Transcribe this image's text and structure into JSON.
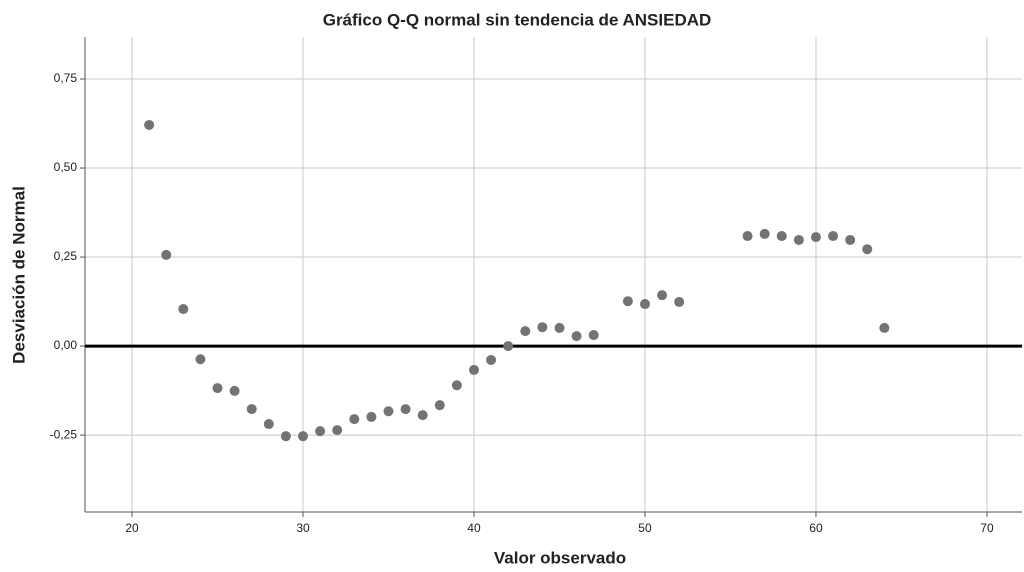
{
  "chart_data": {
    "type": "scatter",
    "title": "Gráfico Q-Q normal sin tendencia de ANSIEDAD",
    "xlabel": "Valor observado",
    "ylabel": "Desviación de Normal",
    "x": [
      21,
      22,
      23,
      24,
      25,
      26,
      27,
      28,
      29,
      30,
      31,
      32,
      33,
      34,
      35,
      36,
      37,
      38,
      39,
      40,
      41,
      42,
      43,
      44,
      45,
      46,
      47,
      49,
      50,
      51,
      52,
      56,
      57,
      58,
      59,
      60,
      61,
      62,
      63,
      64
    ],
    "values": [
      0.621,
      0.256,
      0.104,
      -0.037,
      -0.118,
      -0.126,
      -0.177,
      -0.219,
      -0.253,
      -0.253,
      -0.239,
      -0.236,
      -0.205,
      -0.199,
      -0.183,
      -0.177,
      -0.194,
      -0.166,
      -0.11,
      -0.067,
      -0.039,
      0.0,
      0.042,
      0.053,
      0.051,
      0.028,
      0.031,
      0.126,
      0.118,
      0.143,
      0.124,
      0.309,
      0.315,
      0.309,
      0.298,
      0.306,
      0.309,
      0.298,
      0.272,
      0.051
    ],
    "color": "#737373",
    "reference_line": 0,
    "xlim": [
      17.25,
      72.05
    ],
    "ylim": [
      -0.466,
      0.868
    ],
    "xticks": [
      20,
      30,
      40,
      50,
      60,
      70
    ],
    "yticks": [
      {
        "value": -0.25,
        "label": "-0,25"
      },
      {
        "value": 0,
        "label": "0,00"
      },
      {
        "value": 0.25,
        "label": "0,25"
      },
      {
        "value": 0.5,
        "label": "0,50"
      },
      {
        "value": 0.75,
        "label": "0,75"
      }
    ],
    "grid": true
  }
}
